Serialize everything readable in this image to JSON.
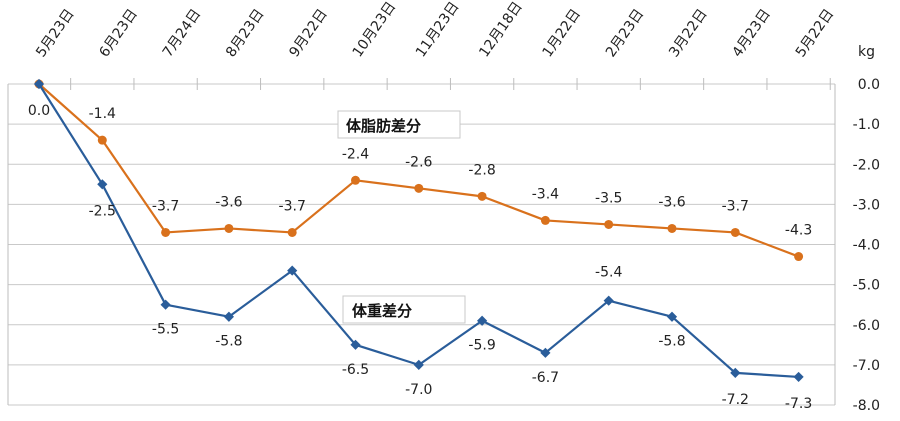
{
  "chart_data": {
    "type": "line",
    "categories": [
      "5月23日",
      "6月23日",
      "7月24日",
      "8月23日",
      "9月22日",
      "10月23日",
      "11月23日",
      "12月18日",
      "1月22日",
      "2月23日",
      "3月22日",
      "4月23日",
      "5月22日"
    ],
    "yunit": "kg",
    "ylim": [
      -8.0,
      0.0
    ],
    "yticks": [
      "0.0",
      "-1.0",
      "-2.0",
      "-3.0",
      "-4.0",
      "-5.0",
      "-6.0",
      "-7.0",
      "-8.0"
    ],
    "grid": true,
    "series": [
      {
        "name": "体脂肪差分",
        "color": "#d9711c",
        "marker": "circle",
        "values": [
          0.0,
          -1.4,
          -3.7,
          -3.6,
          -3.7,
          -2.4,
          -2.6,
          -2.8,
          -3.4,
          -3.5,
          -3.6,
          -3.7,
          -4.3
        ],
        "labels": [
          "",
          "-1.4",
          "-3.7",
          "-3.6",
          "-3.7",
          "-2.4",
          "-2.6",
          "-2.8",
          "-3.4",
          "-3.5",
          "-3.6",
          "-3.7",
          "-4.3"
        ]
      },
      {
        "name": "体重差分",
        "color": "#2a5d9a",
        "marker": "diamond",
        "values": [
          0.0,
          -2.5,
          -5.5,
          -5.8,
          -4.65,
          -6.5,
          -7.0,
          -5.9,
          -6.7,
          -5.4,
          -5.8,
          -7.2,
          -7.3
        ],
        "labels": [
          "0.0",
          "-2.5",
          "-5.5",
          "-5.8",
          "",
          "-6.5",
          "-7.0",
          "-5.9",
          "-6.7",
          "-5.4",
          "-5.8",
          "-7.2",
          "-7.3"
        ]
      }
    ]
  }
}
